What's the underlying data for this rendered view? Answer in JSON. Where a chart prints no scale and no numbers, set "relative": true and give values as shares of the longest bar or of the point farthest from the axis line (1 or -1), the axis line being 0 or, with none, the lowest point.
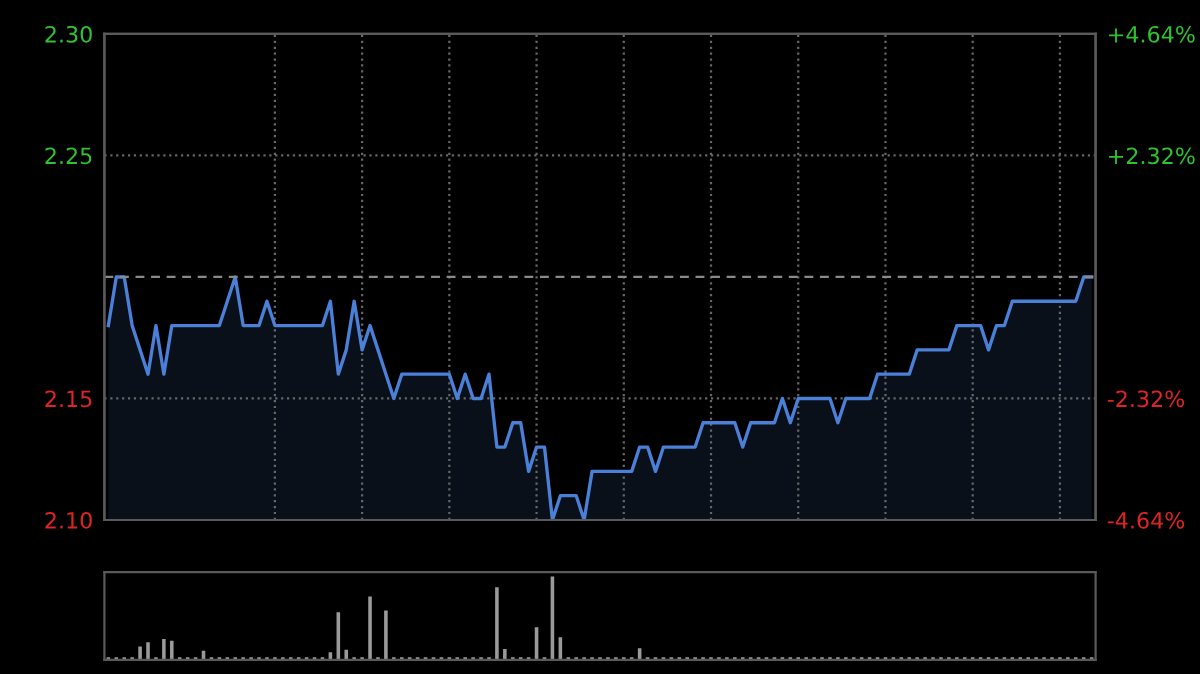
{
  "chart_data": [
    {
      "type": "area",
      "categories": [
        null,
        null,
        null,
        null,
        null,
        null,
        null,
        null,
        null,
        null,
        null,
        null,
        null,
        null,
        null,
        null,
        null,
        null,
        null,
        null,
        null,
        null,
        null,
        null,
        null,
        null,
        null,
        null,
        null,
        null,
        null,
        null,
        null,
        null,
        null,
        null,
        null,
        null,
        null,
        null,
        null,
        null,
        null,
        null,
        null,
        null,
        null,
        null,
        null,
        null,
        null,
        null,
        null,
        null,
        null,
        null,
        null,
        null,
        null,
        null,
        null,
        null,
        null,
        null,
        null,
        null,
        null,
        null,
        null,
        null,
        null,
        null,
        null,
        null,
        null,
        null,
        null,
        null,
        null,
        null,
        null,
        null,
        null,
        null,
        null,
        null,
        null,
        null,
        null,
        null,
        null,
        null,
        null,
        null,
        null,
        null,
        null,
        null,
        null,
        null,
        null,
        null,
        null,
        null,
        null,
        null,
        null,
        null,
        null,
        null,
        null,
        null,
        null,
        null,
        null,
        null,
        null,
        null,
        null,
        null,
        null,
        null,
        null,
        null,
        null
      ],
      "series": [
        {
          "color": "#4a80d8",
          "values": [
            2.18,
            2.2,
            2.2,
            2.18,
            2.17,
            2.16,
            2.18,
            2.16,
            2.18,
            2.18,
            2.18,
            2.18,
            2.18,
            2.18,
            2.18,
            2.19,
            2.2,
            2.18,
            2.18,
            2.18,
            2.19,
            2.18,
            2.18,
            2.18,
            2.18,
            2.18,
            2.18,
            2.18,
            2.19,
            2.16,
            2.17,
            2.19,
            2.17,
            2.18,
            2.17,
            2.16,
            2.15,
            2.16,
            2.16,
            2.16,
            2.16,
            2.16,
            2.16,
            2.16,
            2.15,
            2.16,
            2.15,
            2.15,
            2.16,
            2.13,
            2.13,
            2.14,
            2.14,
            2.12,
            2.13,
            2.13,
            2.1,
            2.11,
            2.11,
            2.11,
            2.1,
            2.12,
            2.12,
            2.12,
            2.12,
            2.12,
            2.12,
            2.13,
            2.13,
            2.12,
            2.13,
            2.13,
            2.13,
            2.13,
            2.13,
            2.14,
            2.14,
            2.14,
            2.14,
            2.14,
            2.13,
            2.14,
            2.14,
            2.14,
            2.14,
            2.15,
            2.14,
            2.15,
            2.15,
            2.15,
            2.15,
            2.15,
            2.14,
            2.15,
            2.15,
            2.15,
            2.15,
            2.16,
            2.16,
            2.16,
            2.16,
            2.16,
            2.17,
            2.17,
            2.17,
            2.17,
            2.17,
            2.18,
            2.18,
            2.18,
            2.18,
            2.17,
            2.18,
            2.18,
            2.19,
            2.19,
            2.19,
            2.19,
            2.19,
            2.19,
            2.19,
            2.19,
            2.19,
            2.2,
            2.2
          ]
        }
      ],
      "ylim": [
        2.1,
        2.3
      ],
      "yticks": [
        {
          "value": 2.1,
          "label": "2.10"
        },
        {
          "value": 2.15,
          "label": "2.15"
        },
        {
          "value": 2.25,
          "label": "2.25"
        },
        {
          "value": 2.3,
          "label": "2.30"
        }
      ],
      "y2lim": [
        -4.64,
        4.64
      ],
      "y2ticks": [
        {
          "value": -4.64,
          "label": "-4.64%"
        },
        {
          "value": -2.32,
          "label": "-2.32%"
        },
        {
          "value": 2.32,
          "label": "+2.32%"
        },
        {
          "value": 4.64,
          "label": "+4.64%"
        }
      ],
      "ref_lines": [
        {
          "axis": "y",
          "value": 2.2,
          "color": "#8a8a8a",
          "line_style": "dashed"
        }
      ],
      "grid": true
    },
    {
      "type": "bar",
      "relative": true,
      "color": "#9a9a9a",
      "categories": [
        null,
        null,
        null,
        null,
        null,
        null,
        null,
        null,
        null,
        null,
        null,
        null,
        null,
        null,
        null,
        null,
        null,
        null,
        null,
        null,
        null,
        null,
        null,
        null,
        null,
        null,
        null,
        null,
        null,
        null,
        null,
        null,
        null,
        null,
        null,
        null,
        null,
        null,
        null,
        null,
        null,
        null,
        null,
        null,
        null,
        null,
        null,
        null,
        null,
        null,
        null,
        null,
        null,
        null,
        null,
        null,
        null,
        null,
        null,
        null,
        null,
        null,
        null,
        null,
        null,
        null,
        null,
        null,
        null,
        null,
        null,
        null,
        null,
        null,
        null,
        null,
        null,
        null,
        null,
        null,
        null,
        null,
        null,
        null,
        null,
        null,
        null,
        null,
        null,
        null,
        null,
        null,
        null,
        null,
        null,
        null,
        null,
        null,
        null,
        null,
        null,
        null,
        null,
        null,
        null,
        null,
        null,
        null,
        null,
        null,
        null,
        null,
        null,
        null,
        null,
        null,
        null,
        null,
        null,
        null,
        null,
        null,
        null,
        null,
        null
      ],
      "values": [
        0.03,
        0.03,
        0.03,
        0.03,
        0.16,
        0.21,
        0.03,
        0.25,
        0.23,
        0.03,
        0.03,
        0.03,
        0.11,
        0.03,
        0.03,
        0.03,
        0.03,
        0.03,
        0.03,
        0.03,
        0.03,
        0.03,
        0.03,
        0.03,
        0.03,
        0.03,
        0.03,
        0.03,
        0.09,
        0.57,
        0.12,
        0.03,
        0.03,
        0.76,
        0.03,
        0.59,
        0.03,
        0.03,
        0.03,
        0.03,
        0.03,
        0.03,
        0.03,
        0.03,
        0.03,
        0.03,
        0.03,
        0.03,
        0.03,
        0.87,
        0.13,
        0.03,
        0.03,
        0.03,
        0.39,
        0.03,
        1,
        0.27,
        0.03,
        0.03,
        0.03,
        0.03,
        0.03,
        0.03,
        0.03,
        0.03,
        0.03,
        0.14,
        0.03,
        0.03,
        0.03,
        0.03,
        0.03,
        0.03,
        0.03,
        0.03,
        0.03,
        0.03,
        0.03,
        0.03,
        0.03,
        0.03,
        0.03,
        0.03,
        0.03,
        0.03,
        0.03,
        0.03,
        0.03,
        0.03,
        0.03,
        0.03,
        0.03,
        0.03,
        0.03,
        0.03,
        0.03,
        0.03,
        0.03,
        0.03,
        0.03,
        0.03,
        0.03,
        0.03,
        0.03,
        0.03,
        0.03,
        0.03,
        0.03,
        0.03,
        0.03,
        0.03,
        0.03,
        0.03,
        0.03,
        0.03,
        0.03,
        0.03,
        0.03,
        0.03,
        0.03,
        0.03,
        0.03,
        0.03,
        0.03
      ]
    }
  ]
}
